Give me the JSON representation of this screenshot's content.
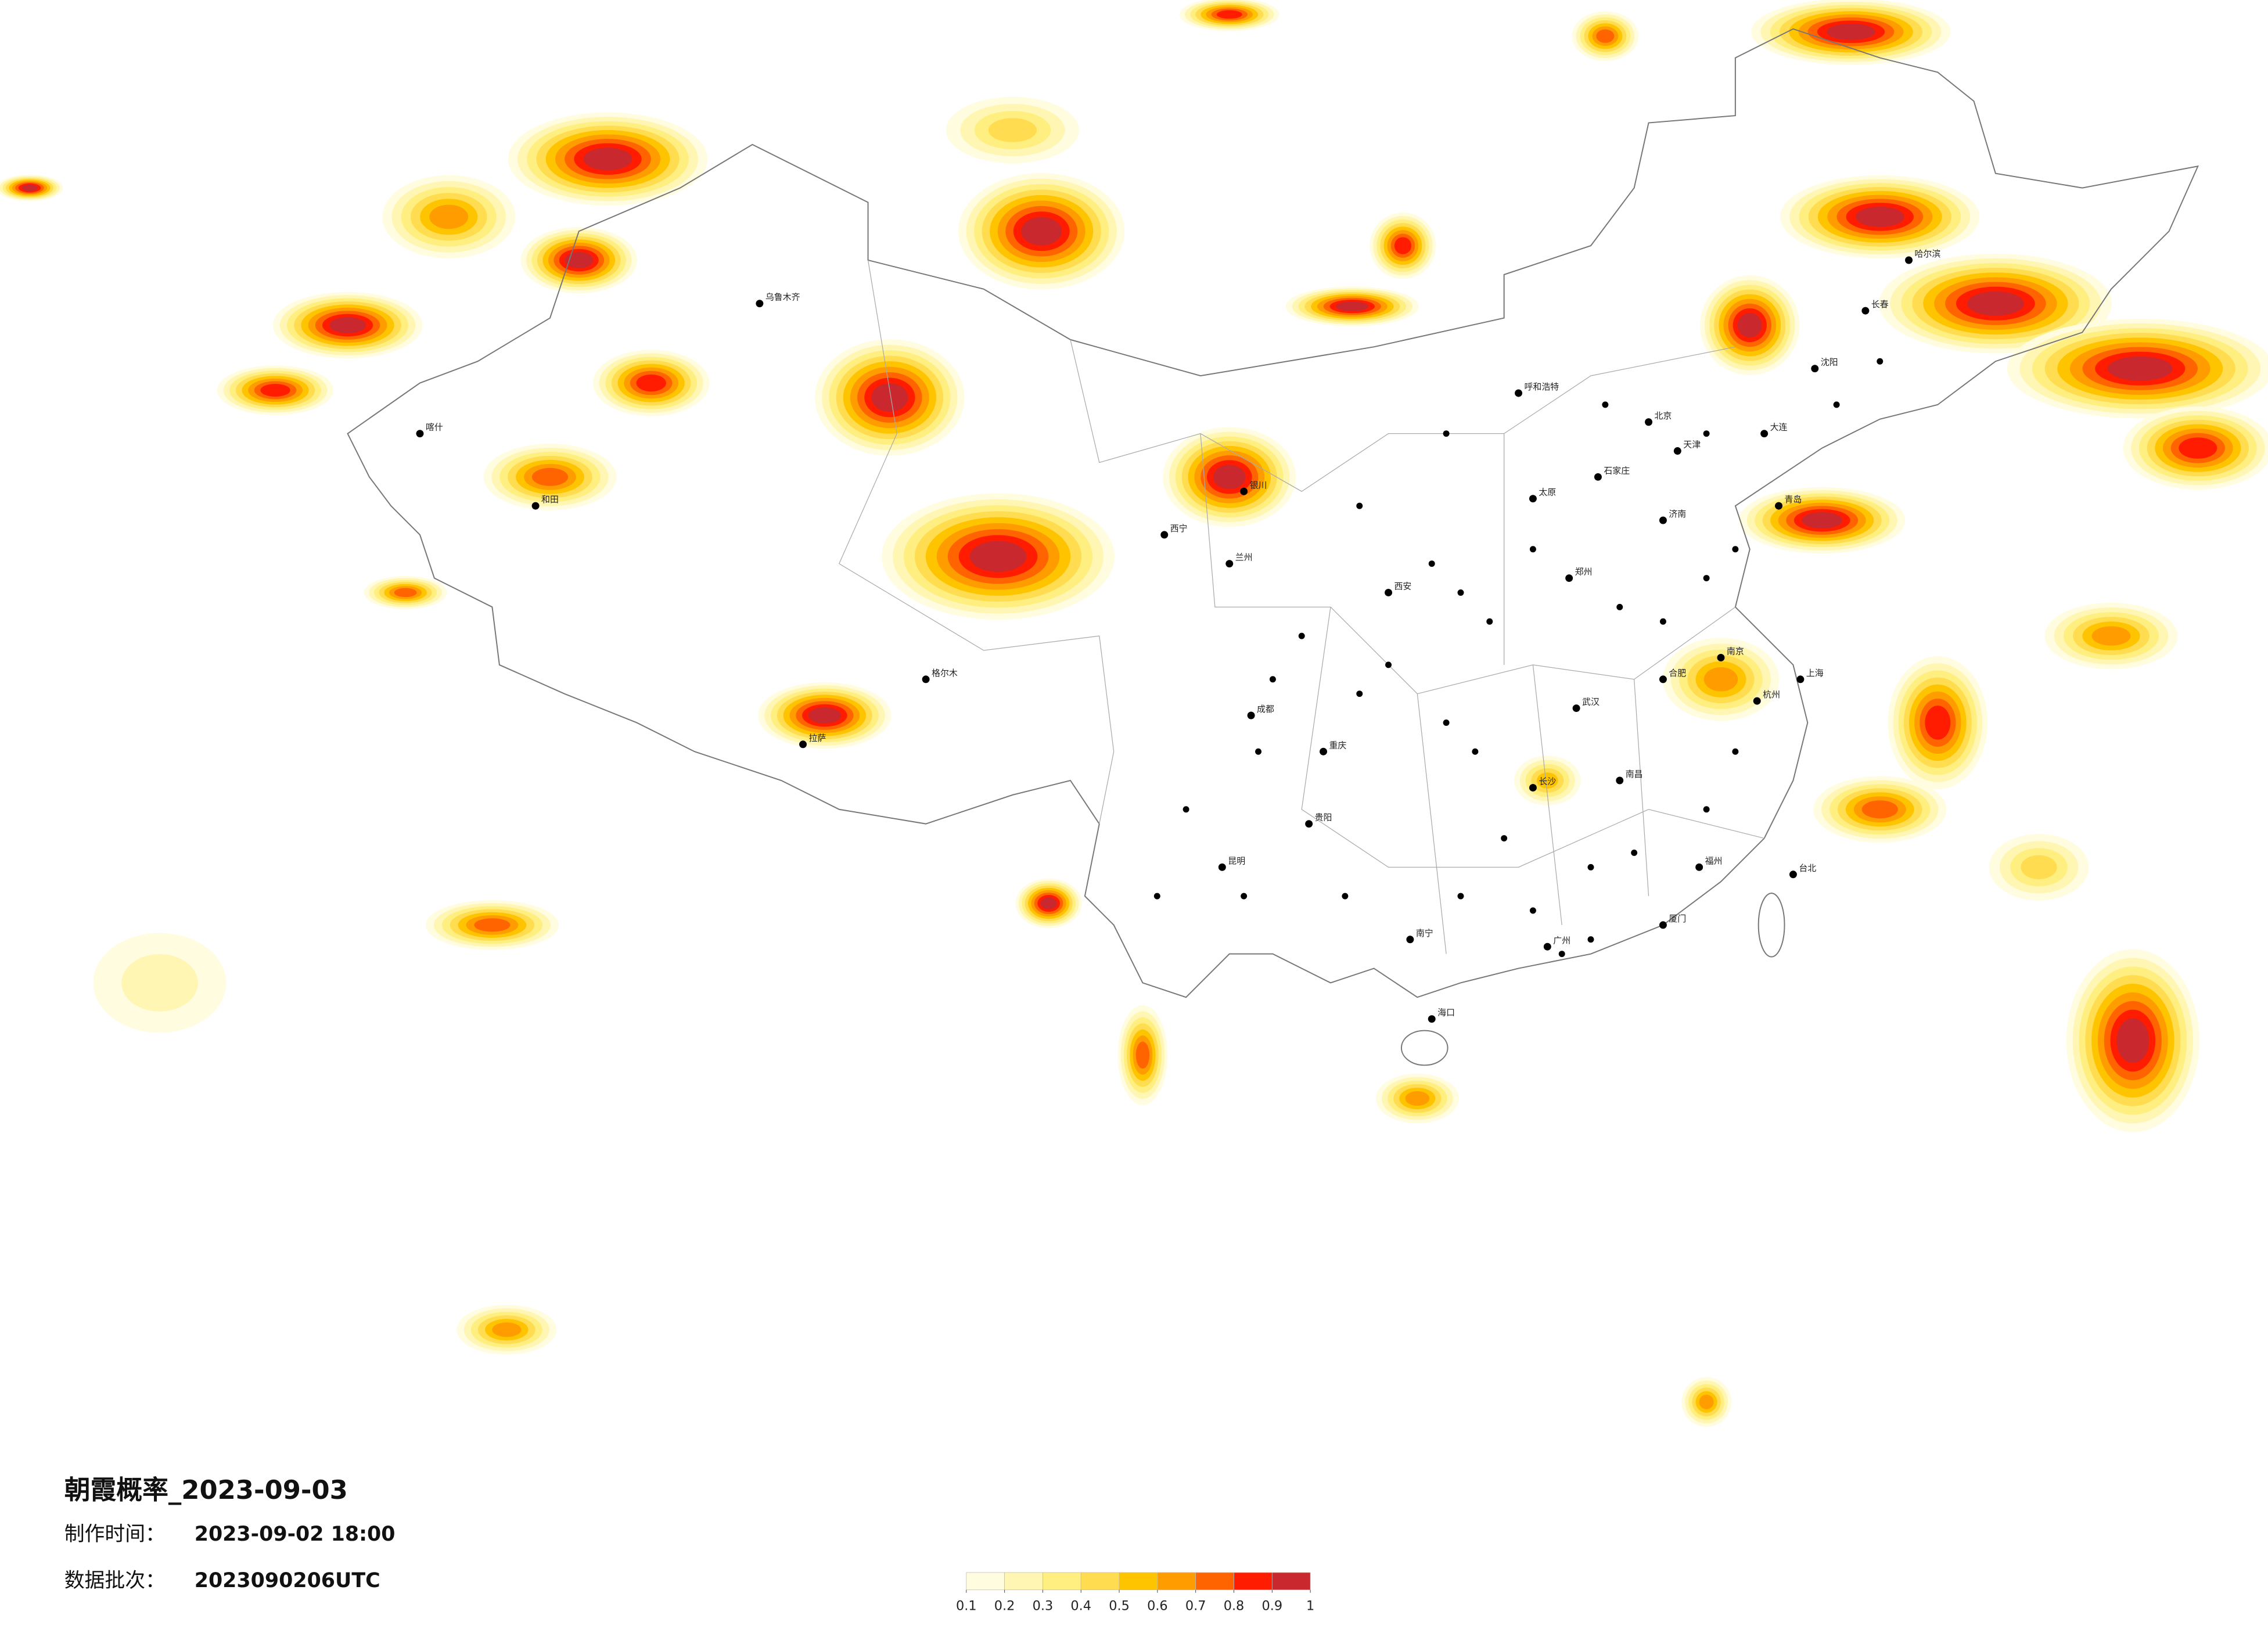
{
  "title": "朝霞概率_2023-09-03",
  "made_time": {
    "label": "制作时间：",
    "value": "2023-09-02 18:00"
  },
  "batch": {
    "label": "数据批次：",
    "value": "2023090206UTC"
  },
  "legend": {
    "ticks": [
      0.1,
      0.2,
      0.3,
      0.4,
      0.5,
      0.6,
      0.7,
      0.8,
      0.9,
      1
    ],
    "colors": [
      "#fffce0",
      "#fff6b4",
      "#ffee80",
      "#ffdc50",
      "#ffc400",
      "#ff9c00",
      "#ff6400",
      "#ff1c00",
      "#c8282e"
    ]
  },
  "cities": [
    "北京",
    "天津",
    "石家庄",
    "太原",
    "呼和浩特",
    "沈阳",
    "长春",
    "哈尔滨",
    "济南",
    "郑州",
    "西安",
    "兰州",
    "西宁",
    "银川",
    "乌鲁木齐",
    "拉萨",
    "成都",
    "重庆",
    "贵阳",
    "昆明",
    "南宁",
    "广州",
    "海口",
    "长沙",
    "武汉",
    "南昌",
    "合肥",
    "南京",
    "杭州",
    "上海",
    "福州",
    "台北",
    "喀什",
    "和田",
    "格尔木",
    "大连",
    "青岛",
    "厦门"
  ]
}
